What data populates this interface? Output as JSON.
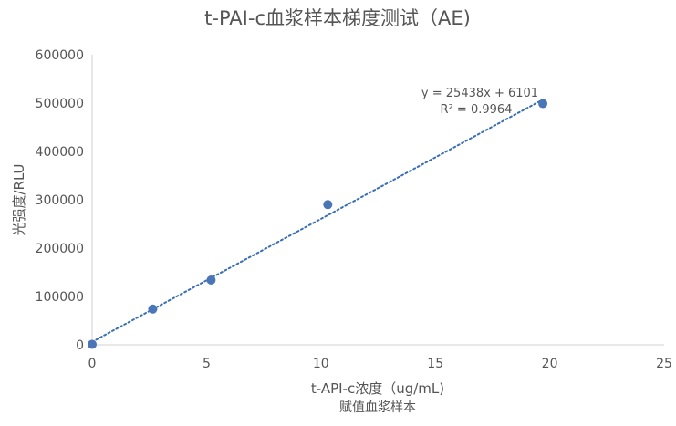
{
  "chart_data": {
    "type": "scatter",
    "title": "t-PAI-c血浆样本梯度测试（AE)",
    "xlabel": "t-API-c浓度（ug/mL)",
    "xlabel_line2": "赋值血浆样本",
    "ylabel": "光强度/RLU",
    "xlim": [
      0,
      25
    ],
    "ylim": [
      0,
      600000
    ],
    "x_ticks": [
      "0",
      "5",
      "10",
      "15",
      "20",
      "25"
    ],
    "y_ticks": [
      "0",
      "100000",
      "200000",
      "300000",
      "400000",
      "500000",
      "600000"
    ],
    "grid": false,
    "legend": "none",
    "series": [
      {
        "x": [
          0,
          2.65,
          5.2,
          10.3,
          19.7
        ],
        "y": [
          1000,
          74000,
          134000,
          290000,
          499000
        ],
        "color": "#4a76b8"
      }
    ],
    "trendline": {
      "slope": 25438,
      "intercept": 6101,
      "x_range": [
        0,
        19.7
      ],
      "color": "#3a6fb5",
      "style": "dotted"
    },
    "annotations": [
      "y = 25438x + 6101",
      "R² = 0.9964"
    ]
  }
}
